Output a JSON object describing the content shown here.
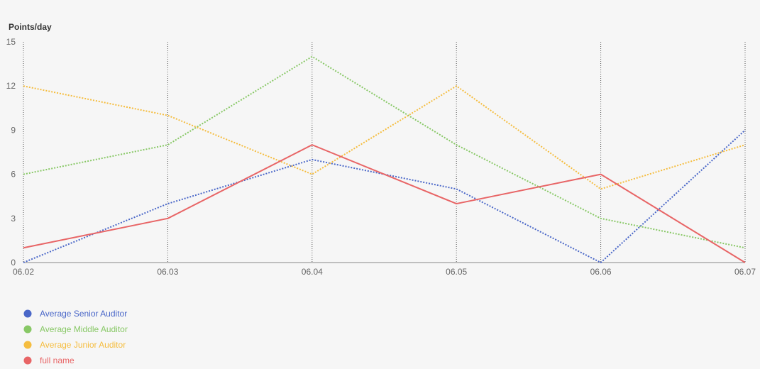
{
  "chart_data": {
    "type": "line",
    "ylabel": "Points/day",
    "categories": [
      "06.02",
      "06.03",
      "06.04",
      "06.05",
      "06.06",
      "06.07"
    ],
    "yticks": [
      0,
      3,
      6,
      9,
      12,
      15
    ],
    "ylim": [
      0,
      15
    ],
    "grid": "vertical-dotted",
    "legend_position": "bottom-left",
    "series": [
      {
        "name": "Average Senior Auditor",
        "color": "#4a67c8",
        "style": "dotted",
        "values": [
          0,
          4,
          7,
          5,
          0,
          9
        ]
      },
      {
        "name": "Average Middle Auditor",
        "color": "#88c866",
        "style": "dotted",
        "values": [
          6,
          8,
          14,
          8,
          3,
          1
        ]
      },
      {
        "name": "Average Junior Auditor",
        "color": "#f5bd3f",
        "style": "dotted",
        "values": [
          12,
          10,
          6,
          12,
          5,
          8
        ]
      },
      {
        "name": "full name",
        "color": "#e86566",
        "style": "solid",
        "values": [
          1,
          3,
          8,
          4,
          6,
          0
        ]
      }
    ]
  }
}
